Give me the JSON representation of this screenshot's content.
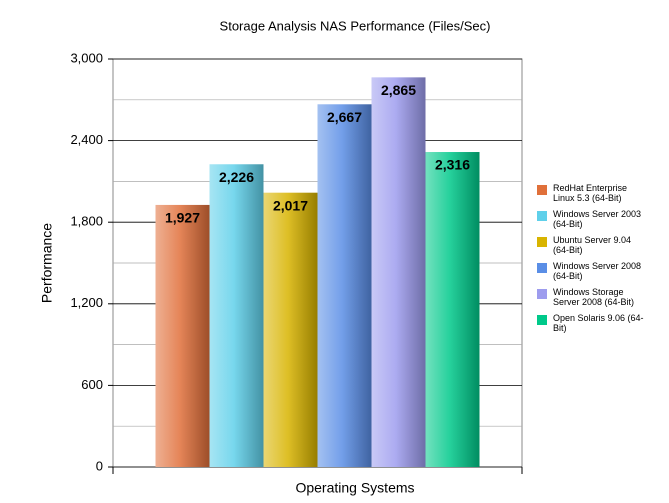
{
  "chart_data": {
    "type": "bar",
    "title": "Storage Analysis NAS Performance (Files/Sec)",
    "x_label": "Operating Systems",
    "y_label": "Performance",
    "series": [
      {
        "name": "RedHat Enterprise Linux 5.3 (64-Bit)",
        "color": "#e0703a",
        "values": [
          1927
        ],
        "value_labels": [
          "1,927"
        ]
      },
      {
        "name": "Windows Server 2003 (64-Bit)",
        "color": "#5fd0ea",
        "values": [
          2226
        ],
        "value_labels": [
          "2,226"
        ]
      },
      {
        "name": "Ubuntu Server 9.04 (64-Bit)",
        "color": "#d8b400",
        "values": [
          2017
        ],
        "value_labels": [
          "2,017"
        ]
      },
      {
        "name": "Windows Server 2008 (64-Bit)",
        "color": "#5a8ee6",
        "values": [
          2667
        ],
        "value_labels": [
          "2,667"
        ]
      },
      {
        "name": "Windows Storage Server 2008 (64-Bit)",
        "color": "#9d9cee",
        "values": [
          2865
        ],
        "value_labels": [
          "2,865"
        ]
      },
      {
        "name": "Open Solaris 9.06 (64-Bit)",
        "color": "#00c98a",
        "values": [
          2316
        ],
        "value_labels": [
          "2,316"
        ]
      }
    ],
    "ylim": [
      0,
      3000
    ],
    "yticks": [
      0,
      600,
      {
        "value": 1200,
        "label": "1,200"
      },
      {
        "value": 1800,
        "label": "1,800"
      },
      {
        "value": 2400,
        "label": "2,400"
      },
      {
        "value": 3000,
        "label": "3,000"
      }
    ],
    "minor_yticks": [
      300,
      900,
      1500,
      2100,
      2700
    ],
    "grid": true,
    "legend": "right"
  }
}
